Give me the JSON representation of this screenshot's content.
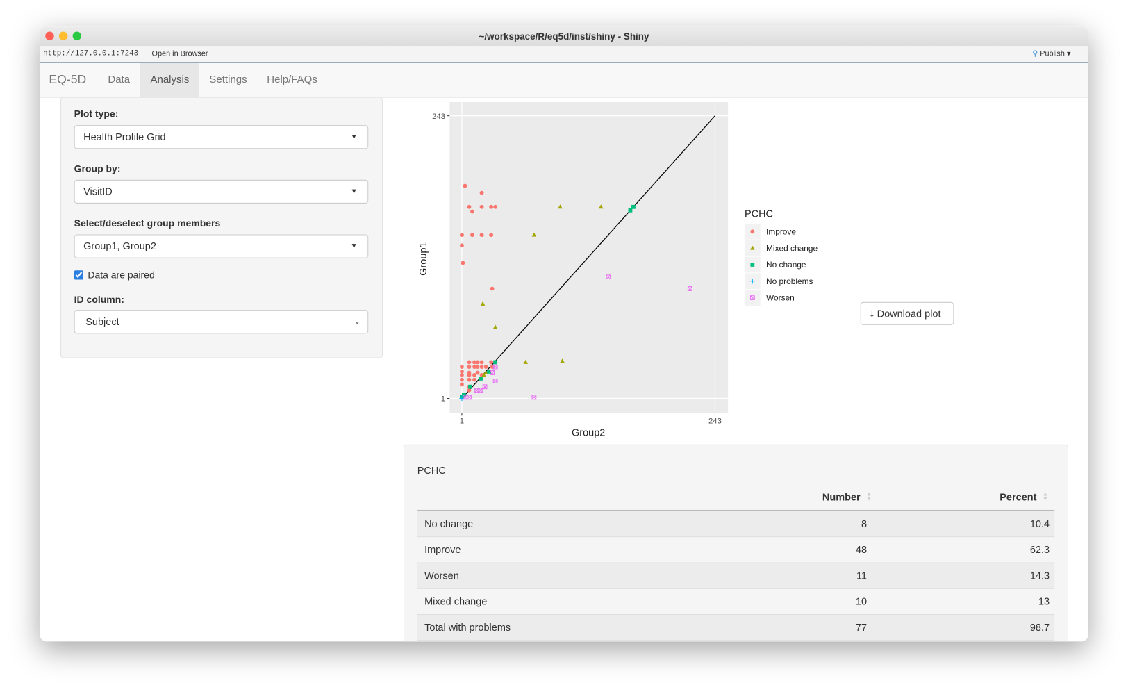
{
  "window": {
    "title": "~/workspace/R/eq5d/inst/shiny - Shiny",
    "url": "http://127.0.0.1:7243",
    "open_in_browser": "Open in Browser",
    "publish": "Publish"
  },
  "navbar": {
    "brand": "EQ-5D",
    "tabs": [
      "Data",
      "Analysis",
      "Settings",
      "Help/FAQs"
    ],
    "active_tab": 1
  },
  "sidebar": {
    "fields": [
      {
        "label": "Plot type:",
        "value": "Health Profile Grid"
      },
      {
        "label": "Group by:",
        "value": "VisitID"
      },
      {
        "label": "Select/deselect group members",
        "value": "Group1, Group2"
      }
    ],
    "checkbox": {
      "label": "Data are paired",
      "checked": true
    },
    "id_column": {
      "label": "ID column:",
      "value": "Subject"
    }
  },
  "chart_data": {
    "type": "scatter",
    "x_label": "Group2",
    "y_label": "Group1",
    "xlim": [
      -10.7,
      255.4
    ],
    "ylim": [
      -11.3,
      254.7
    ],
    "xticks": [
      1,
      243
    ],
    "yticks": [
      1,
      243
    ],
    "grid": true,
    "legend_title": "PCHC",
    "series": [
      {
        "name": "Improve",
        "color": "#F8766D",
        "marker": "circle",
        "x": [
          4,
          20,
          8,
          11,
          20,
          29,
          33,
          1,
          11,
          20,
          29,
          1,
          2,
          30,
          8,
          13,
          16,
          20,
          29,
          33,
          1,
          8,
          13,
          16,
          20,
          24,
          30,
          1,
          8,
          16,
          1,
          8,
          13,
          20,
          1,
          8,
          13,
          1,
          8,
          8
        ],
        "y": [
          183,
          177,
          165,
          161,
          165,
          165,
          165,
          141,
          141,
          141,
          141,
          132,
          117,
          95,
          32,
          32,
          32,
          32,
          32,
          32,
          28,
          28,
          28,
          28,
          28,
          28,
          28,
          24,
          23,
          23,
          21,
          21,
          21,
          21,
          17,
          17,
          17,
          13,
          11,
          8
        ]
      },
      {
        "name": "Mixed change",
        "color": "#A3A500",
        "marker": "triangle",
        "x": [
          95,
          134,
          70,
          21,
          33,
          62,
          97,
          22,
          24,
          27
        ],
        "y": [
          165,
          165,
          141,
          82,
          62,
          32,
          33,
          21,
          23,
          24
        ]
      },
      {
        "name": "No change",
        "color": "#00BF7D",
        "marker": "square",
        "x": [
          165,
          162,
          33,
          27,
          19,
          9,
          3,
          1
        ],
        "y": [
          165,
          162,
          32,
          24,
          18,
          11,
          4,
          2
        ]
      },
      {
        "name": "No problems",
        "color": "#00B0F6",
        "marker": "plus",
        "x": [
          1
        ],
        "y": [
          1
        ]
      },
      {
        "name": "Worsen",
        "color": "#E76BF3",
        "marker": "boxx",
        "x": [
          141,
          219,
          70,
          33,
          30,
          33,
          23,
          19,
          15,
          8,
          4
        ],
        "y": [
          105,
          95,
          2,
          28,
          23,
          16,
          11,
          8,
          8,
          2,
          2
        ]
      }
    ]
  },
  "download_button": "Download plot",
  "table": {
    "title": "PCHC",
    "columns": [
      "Number",
      "Percent"
    ],
    "rows": [
      [
        "No change",
        8,
        10.4
      ],
      [
        "Improve",
        48,
        62.3
      ],
      [
        "Worsen",
        11,
        14.3
      ],
      [
        "Mixed change",
        10,
        13
      ],
      [
        "Total with problems",
        77,
        98.7
      ]
    ]
  }
}
